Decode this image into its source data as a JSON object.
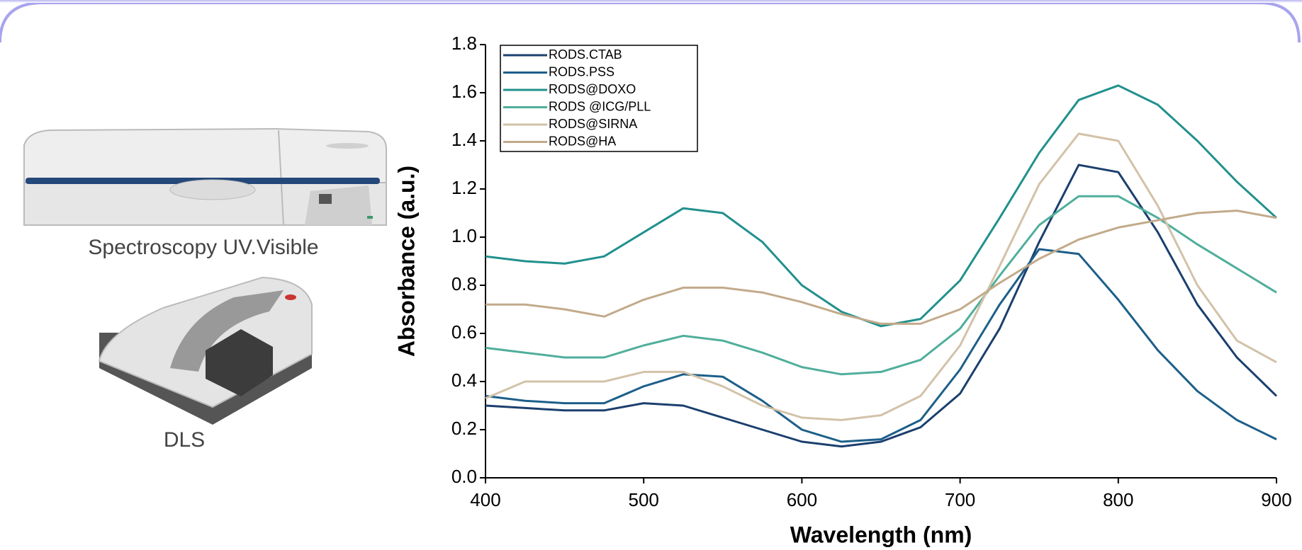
{
  "chart_data": {
    "type": "line",
    "y_label": "Absorbance (a.u.)",
    "x_label": "Wavelength (nm)",
    "x": [
      400,
      425,
      450,
      475,
      500,
      525,
      550,
      575,
      600,
      625,
      650,
      675,
      700,
      725,
      750,
      775,
      800,
      825,
      850,
      875,
      900
    ],
    "xlim": [
      400,
      900
    ],
    "xticks": [
      400,
      500,
      600,
      700,
      800,
      900
    ],
    "ylim": [
      0,
      1.8
    ],
    "yticks": [
      {
        "value": 0,
        "label": "0.0"
      },
      0.2,
      0.4,
      0.6,
      0.8,
      {
        "value": 1,
        "label": "1.0"
      },
      1.2,
      1.4,
      1.6,
      1.8
    ],
    "legend": "upper left",
    "series": [
      {
        "name": "RODS.CTAB",
        "color": "#1b3f6e",
        "values": [
          0.3,
          0.29,
          0.28,
          0.28,
          0.31,
          0.3,
          0.25,
          0.2,
          0.15,
          0.13,
          0.15,
          0.21,
          0.35,
          0.62,
          0.98,
          1.3,
          1.27,
          1.02,
          0.72,
          0.5,
          0.34
        ]
      },
      {
        "name": "RODS.PSS",
        "color": "#1d5f8a",
        "values": [
          0.34,
          0.32,
          0.31,
          0.31,
          0.38,
          0.43,
          0.42,
          0.32,
          0.2,
          0.15,
          0.16,
          0.24,
          0.45,
          0.72,
          0.95,
          0.93,
          0.74,
          0.53,
          0.36,
          0.24,
          0.16
        ]
      },
      {
        "name": "RODS@DOXO",
        "color": "#21908d",
        "values": [
          0.92,
          0.9,
          0.89,
          0.92,
          1.02,
          1.12,
          1.1,
          0.98,
          0.8,
          0.69,
          0.63,
          0.66,
          0.82,
          1.08,
          1.35,
          1.57,
          1.63,
          1.55,
          1.4,
          1.23,
          1.08
        ]
      },
      {
        "name": "RODS @ICG/PLL",
        "color": "#4fae9b",
        "values": [
          0.54,
          0.52,
          0.5,
          0.5,
          0.55,
          0.59,
          0.57,
          0.52,
          0.46,
          0.43,
          0.44,
          0.49,
          0.62,
          0.84,
          1.05,
          1.17,
          1.17,
          1.08,
          0.97,
          0.87,
          0.77
        ]
      },
      {
        "name": "RODS@SIRNA",
        "color": "#d2c2a8",
        "values": [
          0.33,
          0.4,
          0.4,
          0.4,
          0.44,
          0.44,
          0.38,
          0.3,
          0.25,
          0.24,
          0.26,
          0.34,
          0.55,
          0.88,
          1.22,
          1.43,
          1.4,
          1.13,
          0.8,
          0.57,
          0.48
        ]
      },
      {
        "name": "RODS@HA",
        "color": "#c2aa8a",
        "values": [
          0.72,
          0.72,
          0.7,
          0.67,
          0.74,
          0.79,
          0.79,
          0.77,
          0.73,
          0.68,
          0.64,
          0.64,
          0.7,
          0.81,
          0.91,
          0.99,
          1.04,
          1.07,
          1.1,
          1.11,
          1.08
        ]
      }
    ]
  },
  "figure_labels": [
    "Spectroscopy UV.Visible",
    "DLS"
  ]
}
